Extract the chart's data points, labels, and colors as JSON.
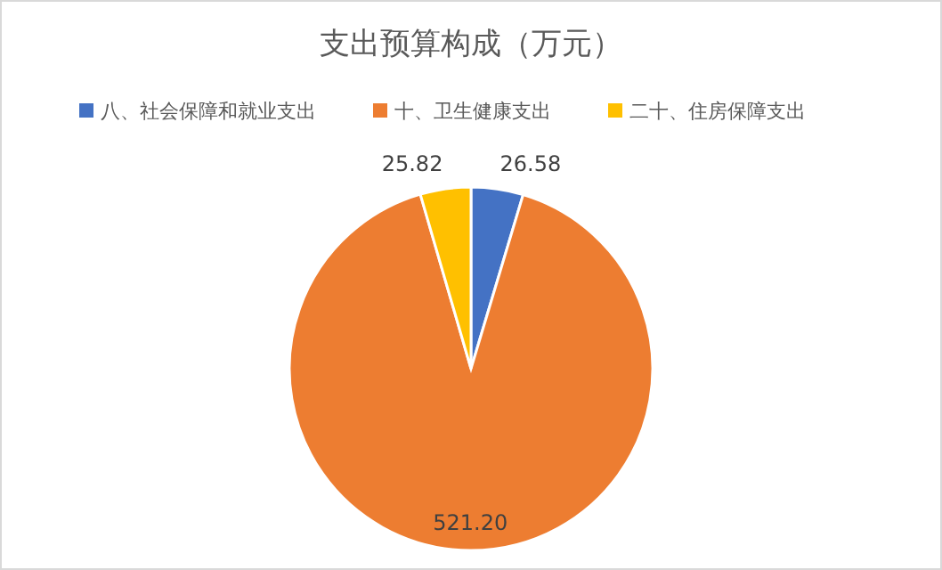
{
  "chart_data": {
    "type": "pie",
    "title": "支出预算构成（万元）",
    "categories": [
      "八、社会保障和就业支出",
      "十、卫生健康支出",
      "二十、住房保障支出"
    ],
    "values": [
      26.58,
      521.2,
      25.82
    ],
    "value_labels": [
      "26.58",
      "521.20",
      "25.82"
    ],
    "colors": [
      "#4472c4",
      "#ed7d31",
      "#ffc000"
    ],
    "legend": "top"
  }
}
